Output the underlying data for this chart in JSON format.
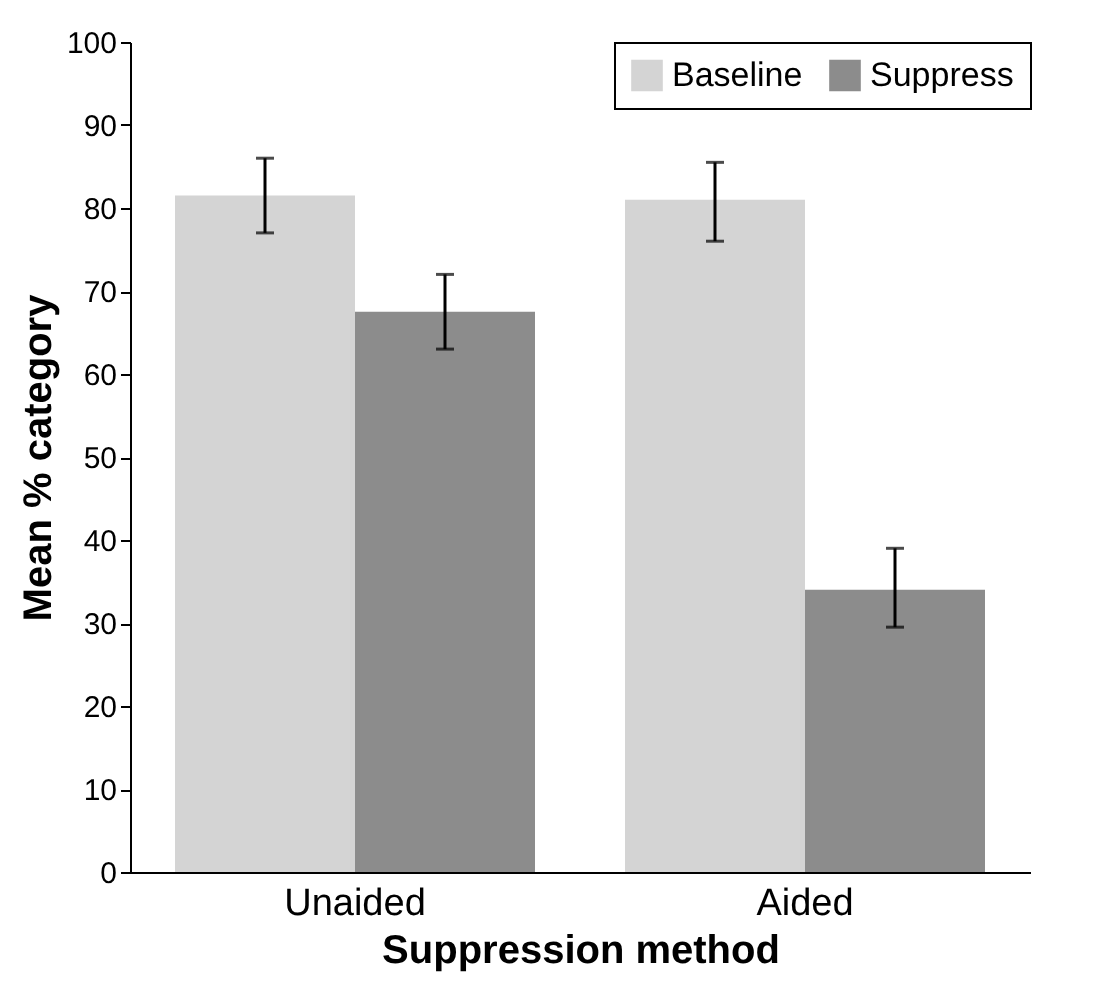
{
  "chart_data": {
    "type": "bar",
    "xlabel": "Suppression method",
    "ylabel": "Mean % category",
    "categories": [
      "Unaided",
      "Aided"
    ],
    "series": [
      {
        "name": "Baseline",
        "color": "#d4d4d4",
        "values": [
          81.5,
          81
        ],
        "errors": [
          [
            77,
            86
          ],
          [
            76,
            85.5
          ]
        ]
      },
      {
        "name": "Suppress",
        "color": "#8c8c8c",
        "values": [
          67.5,
          34
        ],
        "errors": [
          [
            63,
            72
          ],
          [
            29.5,
            39
          ]
        ]
      }
    ],
    "ylim": [
      0,
      100
    ],
    "yticks": [
      0,
      10,
      20,
      30,
      40,
      50,
      60,
      70,
      80,
      90,
      100
    ],
    "grid": false,
    "legend": "top right"
  }
}
